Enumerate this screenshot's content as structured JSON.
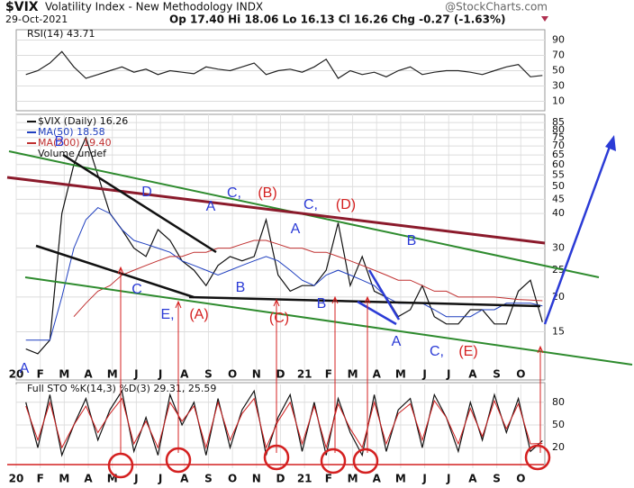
{
  "header": {
    "symbol": "$VIX",
    "name": "Volatility Index - New Methodology INDX",
    "date": "29-Oct-2021",
    "quote": "Op 17.40 Hi 18.06 Lo 16.13 Cl 16.26 Chg -0.27 (-1.63%)",
    "source": "@StockCharts.com"
  },
  "chart_data": [
    {
      "type": "line",
      "title": "RSI(14) 43.71",
      "ylim": [
        0,
        100
      ],
      "yticks": [
        10,
        30,
        50,
        70,
        90
      ],
      "xlim": [
        0,
        22
      ],
      "grid": true,
      "x": [
        0.4,
        0.9,
        1.4,
        1.9,
        2.4,
        2.9,
        3.4,
        3.9,
        4.4,
        4.9,
        5.4,
        5.9,
        6.4,
        6.9,
        7.4,
        7.9,
        8.4,
        8.9,
        9.4,
        9.9,
        10.4,
        10.9,
        11.4,
        11.9,
        12.4,
        12.9,
        13.4,
        13.9,
        14.4,
        14.9,
        15.4,
        15.9,
        16.4,
        16.9,
        17.4,
        17.9,
        18.4,
        18.9,
        19.4,
        19.9,
        20.4,
        20.9,
        21.4,
        21.9
      ],
      "series": [
        {
          "color": "#222222",
          "values": [
            45,
            50,
            60,
            75,
            55,
            40,
            45,
            50,
            55,
            48,
            52,
            45,
            50,
            48,
            46,
            55,
            52,
            50,
            55,
            60,
            45,
            50,
            52,
            48,
            55,
            65,
            40,
            50,
            45,
            48,
            42,
            50,
            55,
            45,
            48,
            50,
            50,
            48,
            45,
            50,
            55,
            58,
            42,
            43.71
          ]
        }
      ]
    },
    {
      "type": "line",
      "log_y": true,
      "volume_label": "Volume undef",
      "ylim": [
        11,
        89
      ],
      "yticks": [
        15,
        20,
        25,
        30,
        40,
        45,
        50,
        55,
        60,
        65,
        70,
        75,
        80,
        85
      ],
      "xlim": [
        0,
        22
      ],
      "grid": true,
      "x": [
        0.4,
        0.9,
        1.4,
        1.9,
        2.4,
        2.9,
        3.4,
        3.9,
        4.4,
        4.9,
        5.4,
        5.9,
        6.4,
        6.9,
        7.4,
        7.9,
        8.4,
        8.9,
        9.4,
        9.9,
        10.4,
        10.9,
        11.4,
        11.9,
        12.4,
        12.9,
        13.4,
        13.9,
        14.4,
        14.9,
        15.4,
        15.9,
        16.4,
        16.9,
        17.4,
        17.9,
        18.4,
        18.9,
        19.4,
        19.9,
        20.4,
        20.9,
        21.4,
        21.9
      ],
      "xticks": [
        {
          "value": 0,
          "label": "20"
        },
        {
          "value": 1,
          "label": "F"
        },
        {
          "value": 2,
          "label": "M"
        },
        {
          "value": 3,
          "label": "A"
        },
        {
          "value": 4,
          "label": "M"
        },
        {
          "value": 5,
          "label": "J"
        },
        {
          "value": 6,
          "label": "J"
        },
        {
          "value": 7,
          "label": "A"
        },
        {
          "value": 8,
          "label": "S"
        },
        {
          "value": 9,
          "label": "O"
        },
        {
          "value": 10,
          "label": "N"
        },
        {
          "value": 11,
          "label": "D"
        },
        {
          "value": 12,
          "label": "21"
        },
        {
          "value": 13,
          "label": "F"
        },
        {
          "value": 14,
          "label": "M"
        },
        {
          "value": 15,
          "label": "A"
        },
        {
          "value": 16,
          "label": "M"
        },
        {
          "value": 17,
          "label": "J"
        },
        {
          "value": 18,
          "label": "J"
        },
        {
          "value": 19,
          "label": "A"
        },
        {
          "value": 20,
          "label": "S"
        },
        {
          "value": 21,
          "label": "O"
        }
      ],
      "series": [
        {
          "name": "$VIX (Daily) 16.26",
          "color": "#111111",
          "values": [
            13,
            12.5,
            14,
            40,
            60,
            75,
            55,
            40,
            35,
            30,
            28,
            35,
            32,
            27,
            25,
            22,
            26,
            28,
            27,
            28,
            38,
            24,
            21,
            22,
            22,
            25,
            37,
            22,
            28,
            21,
            20,
            17,
            18,
            22,
            17,
            16,
            16,
            18,
            18,
            16,
            16,
            21,
            23,
            16.26
          ]
        },
        {
          "name": "MA(50) 18.58",
          "color": "#1f3fbf",
          "values": [
            14,
            14,
            14,
            20,
            30,
            38,
            42,
            40,
            35,
            32,
            31,
            30,
            29,
            27,
            26,
            25,
            24,
            25,
            26,
            27,
            28,
            27,
            25,
            23,
            22,
            24,
            25,
            24,
            23,
            22,
            20,
            19,
            19,
            19,
            18,
            17,
            17,
            17,
            18,
            18,
            19,
            19,
            19,
            18.58
          ]
        },
        {
          "name": "MA(200) 19.40",
          "color": "#c03030",
          "values": [
            null,
            null,
            null,
            null,
            17,
            19,
            21,
            22,
            24,
            25,
            26,
            27,
            28,
            28,
            29,
            29,
            30,
            30,
            31,
            32,
            32,
            31,
            30,
            30,
            29,
            29,
            28,
            27,
            26,
            25,
            24,
            23,
            23,
            22,
            21,
            21,
            20,
            20,
            20,
            20,
            19.8,
            19.6,
            19.5,
            19.4
          ]
        }
      ],
      "annotations": [
        {
          "text": "A",
          "color": "#2b3bd6"
        },
        {
          "text": "B",
          "color": "#2b3bd6"
        },
        {
          "text": "D",
          "color": "#2b3bd6"
        },
        {
          "text": "C",
          "color": "#2b3bd6"
        },
        {
          "text": "A",
          "color": "#2b3bd6"
        },
        {
          "text": "B",
          "color": "#2b3bd6"
        },
        {
          "text": "C,",
          "color": "#2b3bd6"
        },
        {
          "text": "(B)",
          "color": "#d42020"
        },
        {
          "text": "A",
          "color": "#2b3bd6"
        },
        {
          "text": "E,",
          "color": "#2b3bd6"
        },
        {
          "text": "(A)",
          "color": "#d42020"
        },
        {
          "text": "(C)",
          "color": "#d42020"
        },
        {
          "text": "C,",
          "color": "#2b3bd6"
        },
        {
          "text": "(D)",
          "color": "#d42020"
        },
        {
          "text": "B",
          "color": "#2b3bd6"
        },
        {
          "text": "B",
          "color": "#2b3bd6"
        },
        {
          "text": "A",
          "color": "#2b3bd6"
        },
        {
          "text": "C,",
          "color": "#2b3bd6"
        },
        {
          "text": "(E)",
          "color": "#d42020"
        }
      ]
    },
    {
      "type": "line",
      "title": "Full STO %K(14,3) %D(3) 29.31, 25.59",
      "ylim": [
        0,
        100
      ],
      "yticks": [
        20,
        50,
        80
      ],
      "xlim": [
        0,
        22
      ],
      "grid": true,
      "x": [
        0.4,
        0.9,
        1.4,
        1.9,
        2.4,
        2.9,
        3.4,
        3.9,
        4.4,
        4.9,
        5.4,
        5.9,
        6.4,
        6.9,
        7.4,
        7.9,
        8.4,
        8.9,
        9.4,
        9.9,
        10.4,
        10.9,
        11.4,
        11.9,
        12.4,
        12.9,
        13.4,
        13.9,
        14.4,
        14.9,
        15.4,
        15.9,
        16.4,
        16.9,
        17.4,
        17.9,
        18.4,
        18.9,
        19.4,
        19.9,
        20.4,
        20.9,
        21.4,
        21.9
      ],
      "xticks": [
        {
          "value": 0,
          "label": "20"
        },
        {
          "value": 1,
          "label": "F"
        },
        {
          "value": 2,
          "label": "M"
        },
        {
          "value": 3,
          "label": "A"
        },
        {
          "value": 4,
          "label": "M"
        },
        {
          "value": 5,
          "label": "J"
        },
        {
          "value": 6,
          "label": "J"
        },
        {
          "value": 7,
          "label": "A"
        },
        {
          "value": 8,
          "label": "S"
        },
        {
          "value": 9,
          "label": "O"
        },
        {
          "value": 10,
          "label": "N"
        },
        {
          "value": 11,
          "label": "D"
        },
        {
          "value": 12,
          "label": "21"
        },
        {
          "value": 13,
          "label": "F"
        },
        {
          "value": 14,
          "label": "M"
        },
        {
          "value": 15,
          "label": "A"
        },
        {
          "value": 16,
          "label": "M"
        },
        {
          "value": 17,
          "label": "J"
        },
        {
          "value": 18,
          "label": "J"
        },
        {
          "value": 19,
          "label": "A"
        },
        {
          "value": 20,
          "label": "S"
        },
        {
          "value": 21,
          "label": "O"
        }
      ],
      "series": [
        {
          "color": "#111111",
          "values": [
            80,
            20,
            90,
            10,
            50,
            85,
            30,
            70,
            95,
            15,
            60,
            10,
            90,
            50,
            80,
            10,
            85,
            20,
            70,
            95,
            10,
            60,
            90,
            15,
            80,
            10,
            85,
            40,
            10,
            90,
            15,
            70,
            85,
            20,
            90,
            60,
            15,
            80,
            30,
            90,
            40,
            85,
            15,
            29.31
          ]
        },
        {
          "color": "#d02020",
          "values": [
            75,
            30,
            80,
            20,
            50,
            75,
            40,
            65,
            85,
            25,
            55,
            20,
            80,
            55,
            75,
            20,
            80,
            30,
            65,
            85,
            20,
            55,
            80,
            25,
            75,
            20,
            78,
            45,
            20,
            80,
            25,
            65,
            78,
            30,
            82,
            60,
            25,
            72,
            35,
            82,
            45,
            78,
            25,
            25.59
          ]
        }
      ]
    }
  ]
}
